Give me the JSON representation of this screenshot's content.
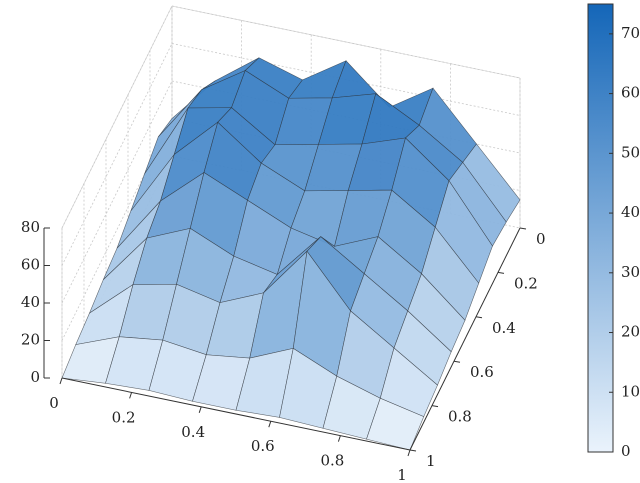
{
  "chart_data": {
    "type": "surface",
    "x": [
      0,
      0.125,
      0.25,
      0.375,
      0.5,
      0.625,
      0.75,
      0.875,
      1
    ],
    "y": [
      0,
      0.125,
      0.25,
      0.375,
      0.5,
      0.625,
      0.75,
      0.875,
      1
    ],
    "z": [
      [
        20,
        45,
        62,
        55,
        70,
        50,
        65,
        40,
        15
      ],
      [
        25,
        55,
        70,
        60,
        65,
        72,
        60,
        45,
        18
      ],
      [
        20,
        60,
        65,
        50,
        55,
        60,
        68,
        50,
        20
      ],
      [
        15,
        50,
        72,
        55,
        45,
        50,
        55,
        40,
        15
      ],
      [
        10,
        40,
        60,
        50,
        40,
        35,
        45,
        30,
        10
      ],
      [
        8,
        35,
        45,
        35,
        30,
        55,
        40,
        25,
        8
      ],
      [
        5,
        25,
        30,
        25,
        35,
        62,
        35,
        20,
        5
      ],
      [
        3,
        12,
        15,
        12,
        15,
        25,
        15,
        8,
        3
      ],
      [
        0,
        2,
        3,
        2,
        2,
        3,
        2,
        1,
        0
      ]
    ],
    "xlim": [
      0,
      1
    ],
    "xticks": [
      0,
      0.2,
      0.4,
      0.6,
      0.8,
      1
    ],
    "ylim": [
      0,
      1
    ],
    "yticks": [
      0,
      0.2,
      0.4,
      0.6,
      0.8,
      1
    ],
    "zlim": [
      0,
      80
    ],
    "zticks": [
      0,
      20,
      40,
      60,
      80
    ],
    "clim": [
      0,
      75
    ],
    "cticks": [
      0,
      10,
      20,
      30,
      40,
      50,
      60,
      70
    ],
    "colormap": [
      "#eaf3fc",
      "#1466b8"
    ],
    "edge_color": "#2a2f36",
    "grid": true,
    "colorbar": true
  }
}
